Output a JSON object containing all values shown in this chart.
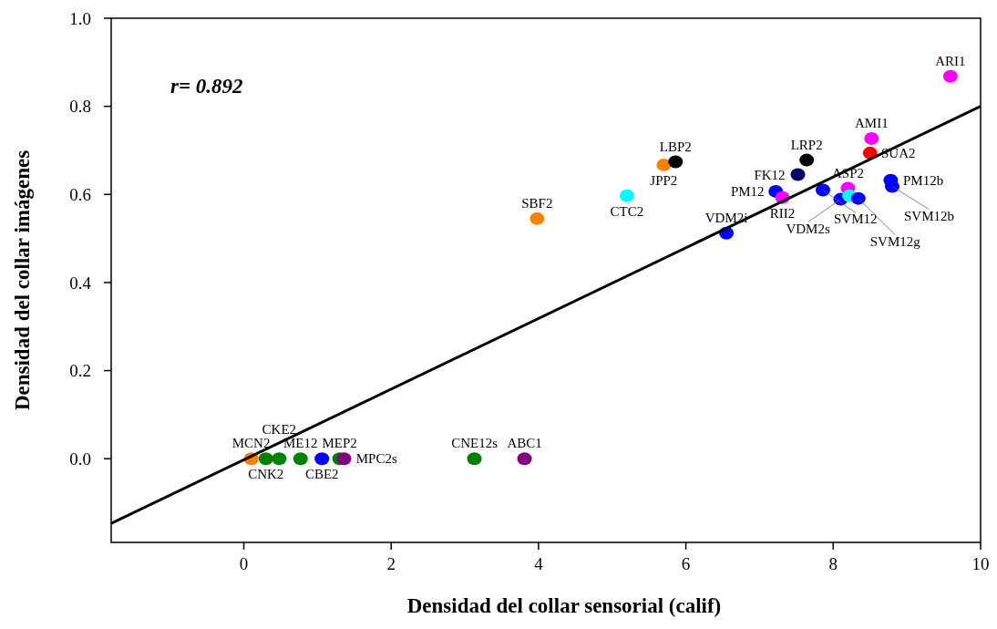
{
  "chart_data": {
    "type": "scatter",
    "xlabel": "Densidad del collar sensorial (calif)",
    "ylabel": "Densidad del collar imágenes",
    "xlim": [
      -1.8,
      10
    ],
    "ylim": [
      -0.19,
      1.0
    ],
    "xticks": [
      0,
      2,
      4,
      6,
      8,
      10
    ],
    "yticks": [
      {
        "value": 0,
        "label": "0.0"
      },
      {
        "value": 0.2,
        "label": "0.2"
      },
      {
        "value": 0.4,
        "label": "0.4"
      },
      {
        "value": 0.6,
        "label": "0.6"
      },
      {
        "value": 0.8,
        "label": "0.8"
      },
      {
        "value": 1,
        "label": "1.0"
      }
    ],
    "grid": false,
    "series": [
      {
        "marker": "circle",
        "x": [
          9.59,
          8.52,
          8.5,
          7.64,
          7.52,
          7.22,
          7.31,
          7.86,
          8.1,
          8.2,
          8.22,
          8.34,
          8.78,
          8.8,
          5.7,
          5.86,
          5.2,
          3.98,
          6.55,
          0.1,
          0.3,
          0.48,
          0.77,
          1.06,
          1.3,
          1.36,
          3.13,
          3.81
        ],
        "values": [
          0.868,
          0.727,
          0.694,
          0.678,
          0.645,
          0.607,
          0.593,
          0.61,
          0.589,
          0.614,
          0.597,
          0.591,
          0.632,
          0.618,
          0.667,
          0.674,
          0.597,
          0.545,
          0.512,
          0,
          0,
          0,
          0,
          0,
          0,
          0,
          0,
          0
        ],
        "colors": [
          "#ff00ff",
          "#ff00ff",
          "#ff0000",
          "#000000",
          "#000066",
          "#0000ff",
          "#ff00ff",
          "#0000ff",
          "#0000ff",
          "#ff00ff",
          "#00ffff",
          "#0000ff",
          "#0000ff",
          "#0000ff",
          "#ff8000",
          "#000000",
          "#00ffff",
          "#ff8000",
          "#0000ff",
          "#ff8000",
          "#008000",
          "#008000",
          "#008000",
          "#0000ff",
          "#008000",
          "#800080",
          "#008000",
          "#800080"
        ]
      },
      {
        "type": "line",
        "color": "#000000",
        "x": [
          -1.8,
          10
        ],
        "values": [
          -0.147,
          0.8
        ],
        "line_style": "solid"
      }
    ],
    "annotations": [
      "r= 0.892",
      {
        "text": "ARI1",
        "x": 9.59,
        "y": 0.868
      },
      {
        "text": "AMI1",
        "x": 8.52,
        "y": 0.727
      },
      {
        "text": "SUA2",
        "x": 8.5,
        "y": 0.694
      },
      {
        "text": "LRP2",
        "x": 7.64,
        "y": 0.678
      },
      {
        "text": "FK12",
        "x": 7.52,
        "y": 0.645
      },
      {
        "text": "PM12",
        "x": 7.22,
        "y": 0.607
      },
      {
        "text": "RII2",
        "x": 7.31,
        "y": 0.593
      },
      {
        "text": "SVM12",
        "x": 7.86,
        "y": 0.61
      },
      {
        "text": "ASP2",
        "x": 8.2,
        "y": 0.614
      },
      {
        "text": "VDM2s",
        "x": 8.1,
        "y": 0.589
      },
      {
        "text": "SVM12g",
        "x": 8.34,
        "y": 0.591
      },
      {
        "text": "PM12b",
        "x": 8.78,
        "y": 0.632
      },
      {
        "text": "SVM12b",
        "x": 8.8,
        "y": 0.618
      },
      {
        "text": "JPP2",
        "x": 5.7,
        "y": 0.667
      },
      {
        "text": "LBP2",
        "x": 5.86,
        "y": 0.674
      },
      {
        "text": "CTC2",
        "x": 5.2,
        "y": 0.597
      },
      {
        "text": "SBF2",
        "x": 3.98,
        "y": 0.545
      },
      {
        "text": "VDM2i",
        "x": 6.55,
        "y": 0.512
      },
      {
        "text": "MCN2",
        "x": 0.1,
        "y": 0
      },
      {
        "text": "CNK2",
        "x": 0.3,
        "y": 0
      },
      {
        "text": "CKE2",
        "x": 0.48,
        "y": 0
      },
      {
        "text": "ME12",
        "x": 0.77,
        "y": 0
      },
      {
        "text": "CBE2",
        "x": 1.06,
        "y": 0
      },
      {
        "text": "MEP2",
        "x": 1.3,
        "y": 0
      },
      {
        "text": "MPC2s",
        "x": 1.36,
        "y": 0
      },
      {
        "text": "CNE12s",
        "x": 3.13,
        "y": 0
      },
      {
        "text": "ABC1",
        "x": 3.81,
        "y": 0
      }
    ]
  }
}
